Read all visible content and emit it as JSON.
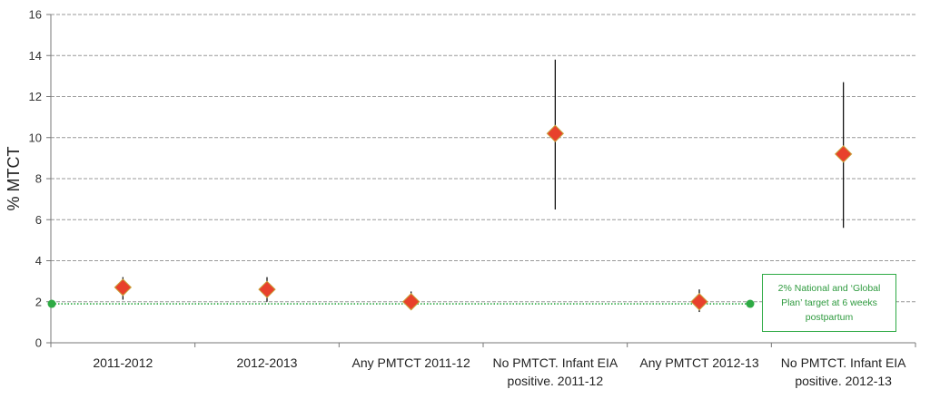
{
  "chart_data": {
    "type": "scatter",
    "title": "",
    "ylabel": "% MTCT",
    "xlabel": "",
    "ylim": [
      0,
      16
    ],
    "yticks": [
      0,
      2,
      4,
      6,
      8,
      10,
      12,
      14,
      16
    ],
    "grid": true,
    "categories": [
      [
        "2011-2012"
      ],
      [
        "2012-2013"
      ],
      [
        "Any PMTCT 2011-12"
      ],
      [
        "No PMTCT. Infant EIA",
        "positive. 2011-12"
      ],
      [
        "Any PMTCT 2012-13"
      ],
      [
        "No PMTCT. Infant EIA",
        "positive. 2012-13"
      ]
    ],
    "points": [
      {
        "value": 2.7,
        "ci": [
          2.1,
          3.2
        ]
      },
      {
        "value": 2.6,
        "ci": [
          2.0,
          3.2
        ]
      },
      {
        "value": 2.0,
        "ci": [
          1.6,
          2.5
        ]
      },
      {
        "value": 10.2,
        "ci": [
          6.5,
          13.8
        ]
      },
      {
        "value": 2.0,
        "ci": [
          1.5,
          2.6
        ]
      },
      {
        "value": 9.2,
        "ci": [
          5.6,
          12.7
        ]
      }
    ],
    "target": {
      "value": 1.9,
      "label": "2% National and ‘Global Plan’ target at 6 weeks postpartum"
    },
    "colors": {
      "marker": "#e8412c",
      "marker_edge": "#c9a23a",
      "target": "#2eaa44",
      "errorbar": "#000000",
      "grid": "#999999"
    }
  }
}
